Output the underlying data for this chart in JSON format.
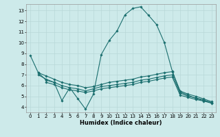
{
  "xlabel": "Humidex (Indice chaleur)",
  "x_all": [
    0,
    1,
    2,
    3,
    4,
    5,
    6,
    7,
    8,
    9,
    10,
    11,
    12,
    13,
    14,
    15,
    16,
    17,
    18,
    19,
    20,
    21,
    22,
    23
  ],
  "line1_x": [
    0,
    1,
    2,
    3,
    4,
    5,
    6,
    7,
    8,
    9,
    10,
    11,
    12,
    13,
    14,
    15,
    16,
    17,
    18,
    19,
    20,
    21,
    22,
    23
  ],
  "line1_y": [
    8.8,
    7.2,
    6.5,
    6.3,
    4.6,
    5.8,
    4.8,
    3.8,
    5.2,
    8.9,
    10.2,
    11.1,
    12.6,
    13.2,
    13.35,
    12.55,
    11.7,
    10.0,
    7.35,
    5.4,
    5.1,
    4.8,
    4.6,
    4.4
  ],
  "line2_x": [
    1,
    2,
    3,
    4,
    5,
    6,
    7,
    8,
    9,
    10,
    11,
    12,
    13,
    14,
    15,
    16,
    17,
    18,
    19,
    20,
    21,
    22,
    23
  ],
  "line2_y": [
    7.2,
    6.9,
    6.6,
    6.3,
    6.1,
    6.0,
    5.8,
    5.9,
    6.1,
    6.3,
    6.4,
    6.5,
    6.6,
    6.8,
    6.9,
    7.05,
    7.2,
    7.3,
    5.5,
    5.2,
    5.0,
    4.75,
    4.5
  ],
  "line3_x": [
    1,
    2,
    3,
    4,
    5,
    6,
    7,
    8,
    9,
    10,
    11,
    12,
    13,
    14,
    15,
    16,
    17,
    18,
    19,
    20,
    21,
    22,
    23
  ],
  "line3_y": [
    7.0,
    6.6,
    6.3,
    6.0,
    5.8,
    5.7,
    5.5,
    5.7,
    5.9,
    6.0,
    6.1,
    6.2,
    6.3,
    6.5,
    6.6,
    6.75,
    6.9,
    7.0,
    5.3,
    5.0,
    4.85,
    4.65,
    4.4
  ],
  "line4_x": [
    2,
    3,
    4,
    5,
    6,
    7,
    8,
    9,
    10,
    11,
    12,
    13,
    14,
    15,
    16,
    17,
    18,
    19,
    20,
    21,
    22,
    23
  ],
  "line4_y": [
    6.3,
    6.1,
    5.8,
    5.6,
    5.5,
    5.35,
    5.5,
    5.7,
    5.8,
    5.9,
    6.0,
    6.1,
    6.3,
    6.4,
    6.55,
    6.7,
    6.8,
    5.1,
    4.9,
    4.7,
    4.55,
    4.35
  ],
  "bg_color": "#cdeaea",
  "grid_color": "#b8d8d8",
  "line_color": "#1a6e6e",
  "ylim": [
    3.5,
    13.6
  ],
  "xlim": [
    -0.5,
    23.5
  ],
  "yticks": [
    4,
    5,
    6,
    7,
    8,
    9,
    10,
    11,
    12,
    13
  ],
  "xticks": [
    0,
    1,
    2,
    3,
    4,
    5,
    6,
    7,
    8,
    9,
    10,
    11,
    12,
    13,
    14,
    15,
    16,
    17,
    18,
    19,
    20,
    21,
    22,
    23
  ]
}
